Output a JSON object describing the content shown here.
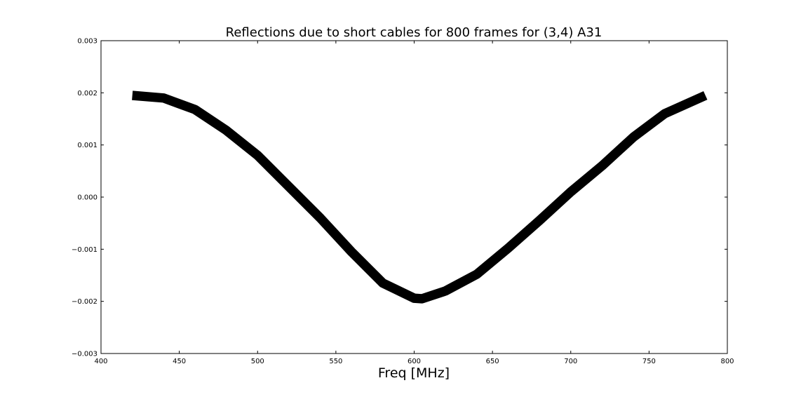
{
  "chart_data": {
    "type": "line",
    "title": "Reflections due to short cables for 800 frames for (3,4) A31",
    "xlabel": "Freq [MHz]",
    "ylabel": "",
    "xlim": [
      400,
      800
    ],
    "ylim": [
      -0.003,
      0.003
    ],
    "x_ticks": [
      400,
      450,
      500,
      550,
      600,
      650,
      700,
      750,
      800
    ],
    "x_tick_labels": [
      "400",
      "450",
      "500",
      "550",
      "600",
      "650",
      "700",
      "750",
      "800"
    ],
    "y_ticks": [
      0.003,
      0.002,
      0.001,
      0.0,
      -0.001,
      -0.002,
      -0.003
    ],
    "y_tick_labels": [
      "0.003",
      "0.002",
      "0.001",
      "0.000",
      "−0.001",
      "−0.002",
      "−0.003"
    ],
    "grid": false,
    "legend": "none",
    "series": [
      {
        "color": "#000000",
        "x": [
          420,
          440,
          460,
          480,
          500,
          520,
          540,
          560,
          580,
          600,
          605,
          620,
          640,
          660,
          680,
          700,
          720,
          740,
          760,
          786
        ],
        "y": [
          0.00195,
          0.0019,
          0.00168,
          0.00128,
          0.0008,
          0.0002,
          -0.0004,
          -0.00105,
          -0.00165,
          -0.00194,
          -0.00195,
          -0.0018,
          -0.00148,
          -0.00098,
          -0.00045,
          0.0001,
          0.0006,
          0.00115,
          0.0016,
          0.00195
        ],
        "band_halfwidth": 9e-05
      }
    ]
  }
}
